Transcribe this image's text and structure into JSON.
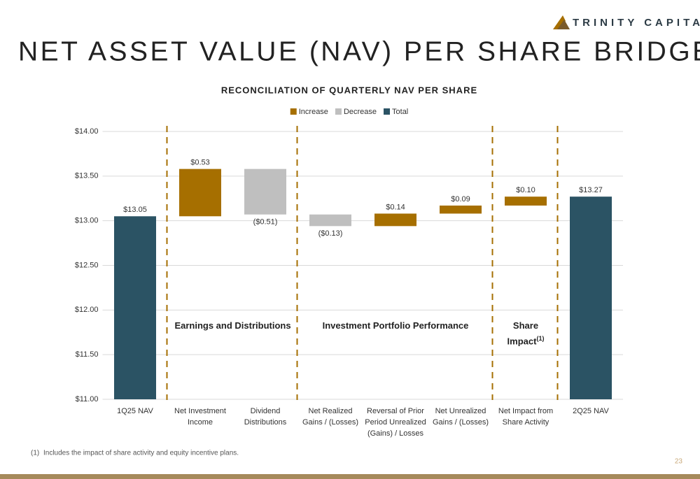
{
  "header": {
    "logo": "TRINITY CAPITAL",
    "title": "NET ASSET VALUE (NAV) PER SHARE BRIDGE",
    "page_number": "23"
  },
  "footnote": {
    "marker": "(1)",
    "text": "Includes the impact of share activity and equity incentive plans."
  },
  "chart_data": {
    "type": "waterfall",
    "title": "RECONCILIATION OF QUARTERLY NAV PER SHARE",
    "categories": [
      "1Q25 NAV",
      "Net Investment Income",
      "Dividend Distributions",
      "Net Realized Gains / (Losses)",
      "Reversal of Prior Period Unrealized (Gains) / Losses",
      "Net Unrealized Gains / (Losses)",
      "Net Impact from Share Activity",
      "2Q25 NAV"
    ],
    "values": [
      13.05,
      0.53,
      -0.51,
      -0.13,
      0.14,
      0.09,
      0.1,
      13.27
    ],
    "value_labels": [
      "$13.05",
      "$0.53",
      "($0.51)",
      "($0.13)",
      "$0.14",
      "$0.09",
      "$0.10",
      "$13.27"
    ],
    "is_total": [
      true,
      false,
      false,
      false,
      false,
      false,
      false,
      true
    ],
    "series": [
      {
        "name": "Increase",
        "color": "#a66f00"
      },
      {
        "name": "Decrease",
        "color": "#bfbfbf"
      },
      {
        "name": "Total",
        "color": "#2b5364"
      }
    ],
    "groups": [
      {
        "label": "Earnings and Distributions",
        "start": 1,
        "end": 2
      },
      {
        "label": "Investment Portfolio Performance",
        "start": 3,
        "end": 5
      },
      {
        "label": "Share Impact",
        "note": "(1)",
        "start": 6,
        "end": 6
      }
    ],
    "ylim": [
      11,
      14
    ],
    "yticks": [
      {
        "value": 11,
        "label": "$11.00"
      },
      {
        "value": 11.5,
        "label": "$11.50"
      },
      {
        "value": 12,
        "label": "$12.00"
      },
      {
        "value": 12.5,
        "label": "$12.50"
      },
      {
        "value": 13,
        "label": "$13.00"
      },
      {
        "value": 13.5,
        "label": "$13.50"
      },
      {
        "value": 14,
        "label": "$14.00"
      }
    ],
    "grid": true,
    "legend": "top"
  }
}
